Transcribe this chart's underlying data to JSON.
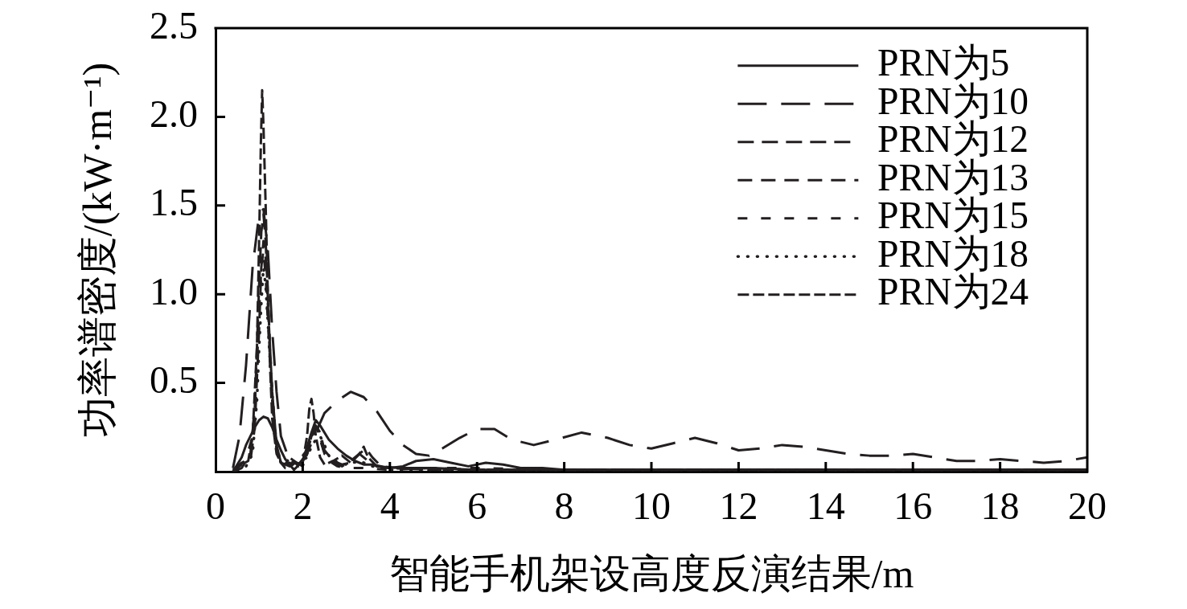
{
  "chart_data": {
    "type": "line",
    "xlabel": "智能手机架设高度反演结果/m",
    "ylabel": "功率谱密度/(kW·m⁻¹)",
    "xlim": [
      0,
      20
    ],
    "xticks": [
      0,
      2,
      4,
      6,
      8,
      10,
      12,
      14,
      16,
      18,
      20
    ],
    "ylim": [
      0,
      2.5
    ],
    "yticks": [
      0.5,
      {
        "value": 1,
        "label": "1.0"
      },
      1.5,
      {
        "value": 2,
        "label": "2.0"
      },
      2.5
    ],
    "legend": "top right",
    "series": [
      {
        "name": "PRN为5",
        "color": "#231f20",
        "line_style": "solid",
        "x": [
          0.4,
          0.6,
          0.7,
          0.8,
          0.9,
          1.0,
          1.1,
          1.2,
          1.3,
          1.4,
          1.5,
          1.6,
          1.7,
          1.8,
          2.0,
          2.1,
          2.2,
          2.3,
          2.4,
          2.6,
          2.8,
          3.0,
          3.2,
          3.4,
          3.6,
          3.8,
          4.0,
          4.3,
          4.6,
          5.0,
          5.4,
          5.8,
          6.2,
          6.6,
          7.0,
          7.5,
          8,
          9,
          10,
          11,
          12,
          13,
          14,
          15,
          16,
          17,
          18,
          19,
          20
        ],
        "values": [
          0,
          0.08,
          0.15,
          0.2,
          0.25,
          0.29,
          0.31,
          0.3,
          0.25,
          0.18,
          0.12,
          0.07,
          0.04,
          0.01,
          0.06,
          0.14,
          0.22,
          0.29,
          0.26,
          0.18,
          0.13,
          0.09,
          0.06,
          0.04,
          0.04,
          0.03,
          0.02,
          0.03,
          0.06,
          0.07,
          0.05,
          0.03,
          0.05,
          0.04,
          0.02,
          0.02,
          0.01,
          0.01,
          0.01,
          0.01,
          0.01,
          0.01,
          0.01,
          0.01,
          0.01,
          0.01,
          0.01,
          0.01,
          0.01
        ]
      },
      {
        "name": "PRN为10",
        "color": "#231f20",
        "line_style": "dashed",
        "x": [
          0.4,
          0.55,
          0.7,
          0.85,
          1.0,
          1.1,
          1.2,
          1.3,
          1.4,
          1.5,
          1.7,
          1.9,
          2.1,
          2.3,
          2.5,
          2.8,
          3.1,
          3.4,
          3.7,
          4.0,
          4.3,
          4.6,
          4.9,
          5.2,
          5.6,
          6.0,
          6.4,
          6.8,
          7.3,
          7.8,
          8.4,
          9.0,
          9.5,
          10.0,
          10.5,
          11.0,
          11.5,
          12.0,
          12.5,
          13.0,
          13.5,
          14.0,
          14.5,
          15.0,
          15.5,
          16.0,
          16.5,
          17.0,
          17.5,
          18.0,
          18.5,
          19.0,
          19.5,
          20.0
        ],
        "values": [
          0.02,
          0.2,
          0.6,
          1.15,
          1.45,
          1.48,
          1.25,
          0.8,
          0.45,
          0.2,
          0.06,
          0.04,
          0.1,
          0.22,
          0.33,
          0.4,
          0.45,
          0.42,
          0.34,
          0.23,
          0.15,
          0.1,
          0.09,
          0.13,
          0.19,
          0.24,
          0.24,
          0.18,
          0.15,
          0.18,
          0.22,
          0.19,
          0.15,
          0.13,
          0.16,
          0.19,
          0.16,
          0.12,
          0.13,
          0.15,
          0.14,
          0.12,
          0.1,
          0.09,
          0.09,
          0.1,
          0.08,
          0.06,
          0.06,
          0.07,
          0.06,
          0.05,
          0.06,
          0.08
        ]
      },
      {
        "name": "PRN为12",
        "color": "#231f20",
        "line_style": "dashed",
        "x": [
          0.4,
          0.6,
          0.8,
          0.9,
          0.95,
          1.0,
          1.05,
          1.1,
          1.15,
          1.2,
          1.25,
          1.3,
          1.4,
          1.5,
          1.6,
          1.8,
          2.0,
          2.1,
          2.2,
          2.3,
          2.4,
          2.5,
          2.7,
          2.9,
          3.1,
          3.3,
          3.5,
          3.7,
          4.0,
          4.5,
          5,
          6,
          7,
          8,
          10,
          12,
          14,
          16,
          18,
          20
        ],
        "values": [
          0,
          0.02,
          0.1,
          0.35,
          0.7,
          1.05,
          1.35,
          1.45,
          1.3,
          1.0,
          0.7,
          0.45,
          0.15,
          0.05,
          0.02,
          0.06,
          0.03,
          0.1,
          0.2,
          0.26,
          0.22,
          0.12,
          0.06,
          0.04,
          0.05,
          0.1,
          0.06,
          0.03,
          0.02,
          0.02,
          0.02,
          0.01,
          0.01,
          0.01,
          0.01,
          0.01,
          0.01,
          0.01,
          0.01,
          0.01
        ]
      },
      {
        "name": "PRN为13",
        "color": "#231f20",
        "line_style": "dashed",
        "x": [
          0.4,
          0.6,
          0.8,
          0.9,
          1.0,
          1.05,
          1.1,
          1.15,
          1.2,
          1.3,
          1.4,
          1.5,
          1.7,
          1.9,
          2.1,
          2.2,
          2.3,
          2.4,
          2.5,
          2.7,
          2.9,
          3.1,
          3.3,
          3.45,
          3.6,
          3.8,
          4.2,
          5,
          6,
          8,
          10,
          12,
          14,
          16,
          18,
          20
        ],
        "values": [
          0.01,
          0.05,
          0.06,
          0.25,
          0.8,
          1.15,
          1.3,
          1.2,
          0.95,
          0.45,
          0.15,
          0.05,
          0.03,
          0.06,
          0.12,
          0.19,
          0.25,
          0.2,
          0.1,
          0.05,
          0.03,
          0.06,
          0.1,
          0.13,
          0.08,
          0.03,
          0.02,
          0.02,
          0.01,
          0.01,
          0.01,
          0.01,
          0.01,
          0.01,
          0.01,
          0.01
        ]
      },
      {
        "name": "PRN为15",
        "color": "#231f20",
        "line_style": "dashed",
        "x": [
          0.5,
          0.7,
          0.85,
          0.95,
          1.0,
          1.05,
          1.1,
          1.15,
          1.2,
          1.3,
          1.4,
          1.5,
          1.7,
          1.9,
          2.1,
          2.2,
          2.3,
          2.4,
          2.5,
          2.6,
          2.8,
          3.0,
          3.4,
          4,
          5,
          6,
          8,
          10,
          12,
          14,
          16,
          18,
          20
        ],
        "values": [
          0.02,
          0.07,
          0.2,
          0.6,
          0.9,
          1.15,
          1.25,
          1.1,
          0.85,
          0.4,
          0.12,
          0.04,
          0.05,
          0.02,
          0.1,
          0.2,
          0.23,
          0.18,
          0.1,
          0.06,
          0.03,
          0.02,
          0.02,
          0.01,
          0.02,
          0.02,
          0.01,
          0.01,
          0.01,
          0.01,
          0.01,
          0.01,
          0.01
        ]
      },
      {
        "name": "PRN为18",
        "color": "#231f20",
        "line_style": "dotted",
        "x": [
          0.5,
          0.7,
          0.85,
          0.95,
          1.0,
          1.05,
          1.1,
          1.15,
          1.2,
          1.3,
          1.4,
          1.5,
          1.8,
          2.1,
          2.2,
          2.3,
          2.4,
          2.5,
          2.6,
          2.8,
          3.0,
          3.3,
          3.6,
          4,
          5,
          6,
          8,
          10,
          12,
          14,
          16,
          18,
          20
        ],
        "values": [
          0.01,
          0.03,
          0.1,
          0.4,
          0.7,
          0.95,
          1.15,
          1.05,
          0.85,
          0.4,
          0.12,
          0.05,
          0.03,
          0.08,
          0.14,
          0.18,
          0.2,
          0.15,
          0.09,
          0.05,
          0.04,
          0.06,
          0.03,
          0.01,
          0.01,
          0.01,
          0.01,
          0.01,
          0.01,
          0.01,
          0.01,
          0.01,
          0.01
        ]
      },
      {
        "name": "PRN为24",
        "color": "#231f20",
        "line_style": "dashed",
        "x": [
          0.4,
          0.6,
          0.75,
          0.85,
          0.95,
          1.0,
          1.04,
          1.07,
          1.1,
          1.15,
          1.2,
          1.25,
          1.3,
          1.4,
          1.5,
          1.6,
          1.7,
          1.8,
          1.9,
          2.0,
          2.1,
          2.15,
          2.2,
          2.25,
          2.3,
          2.4,
          2.5,
          2.7,
          2.9,
          3.1,
          3.3,
          3.4,
          3.5,
          3.7,
          4,
          5,
          6,
          8,
          10,
          12,
          14,
          16,
          18,
          20
        ],
        "values": [
          0,
          0.04,
          0.06,
          0.2,
          0.7,
          1.3,
          1.85,
          2.15,
          1.95,
          1.5,
          1.0,
          0.6,
          0.3,
          0.1,
          0.05,
          0.04,
          0.08,
          0.06,
          0.03,
          0.05,
          0.2,
          0.35,
          0.41,
          0.33,
          0.2,
          0.08,
          0.04,
          0.06,
          0.09,
          0.05,
          0.1,
          0.14,
          0.08,
          0.03,
          0.02,
          0.01,
          0.01,
          0.01,
          0.01,
          0.01,
          0.01,
          0.01,
          0.01,
          0.01
        ]
      }
    ]
  }
}
